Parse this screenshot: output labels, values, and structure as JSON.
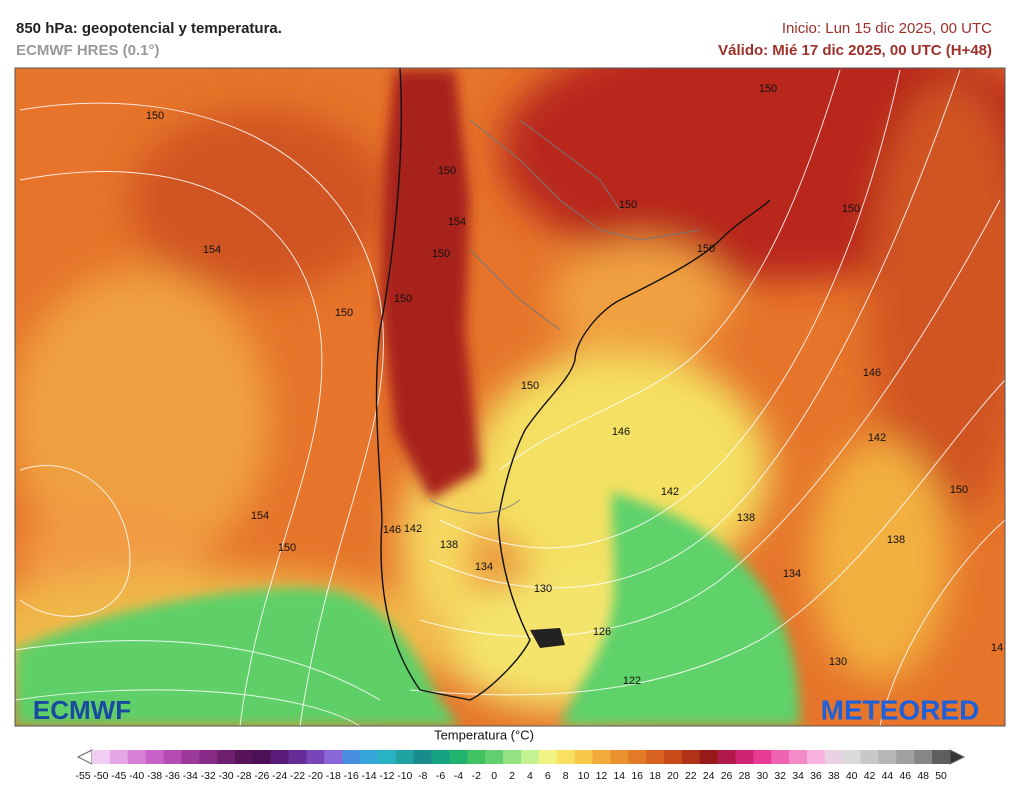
{
  "header": {
    "title": "850 hPa: geopotencial y temperatura.",
    "subtitle": "ECMWF HRES (0.1°)",
    "init": "Inicio: Lun 15 dic 2025, 00 UTC",
    "valid": "Válido: Mié 17 dic 2025, 00 UTC (H+48)"
  },
  "logos": {
    "left": "ECMWF",
    "right": "METEORED"
  },
  "contour_labels": [
    "150",
    "154",
    "150",
    "154",
    "150",
    "150",
    "150",
    "150",
    "150",
    "150",
    "146",
    "146",
    "142",
    "150",
    "142",
    "138",
    "138",
    "134",
    "130",
    "142",
    "146",
    "138",
    "134",
    "130",
    "126",
    "122",
    "150",
    "154",
    "150",
    "150",
    "14"
  ],
  "legend": {
    "title": "Temperatura (°C)",
    "ticks": [
      -55,
      -50,
      -45,
      -40,
      -38,
      -36,
      -34,
      -32,
      -30,
      -28,
      -26,
      -24,
      -22,
      -20,
      -18,
      -16,
      -14,
      -12,
      -10,
      -8,
      -6,
      -4,
      -2,
      0,
      2,
      4,
      6,
      8,
      10,
      12,
      14,
      16,
      18,
      20,
      22,
      24,
      26,
      28,
      30,
      32,
      34,
      36,
      38,
      40,
      42,
      44,
      46,
      48,
      50
    ],
    "colors": [
      "#f2cdf2",
      "#e6a6e6",
      "#d880d8",
      "#c862c8",
      "#b44cb4",
      "#9c3a9c",
      "#862a86",
      "#6e1e6e",
      "#581458",
      "#4c1058",
      "#581c78",
      "#682c98",
      "#7846b8",
      "#8a66d8",
      "#4a8ee0",
      "#34a6da",
      "#28b2c4",
      "#20a2a2",
      "#188c8c",
      "#14a282",
      "#22b270",
      "#40c260",
      "#62d070",
      "#92e284",
      "#c4f292",
      "#f2f282",
      "#f8e060",
      "#f8c848",
      "#f2aa3a",
      "#ea9230",
      "#e27a28",
      "#d86220",
      "#c84a18",
      "#b03218",
      "#981a18",
      "#b01a4a",
      "#d02272",
      "#e83a92",
      "#f062b2",
      "#f48ac8",
      "#f8b2dc",
      "#ead2e2",
      "#dadada",
      "#c8c8c8",
      "#b6b6b6",
      "#a0a0a0",
      "#868686",
      "#5e5e5e"
    ],
    "low_color": "#ffffff",
    "high_color": "#333333"
  }
}
